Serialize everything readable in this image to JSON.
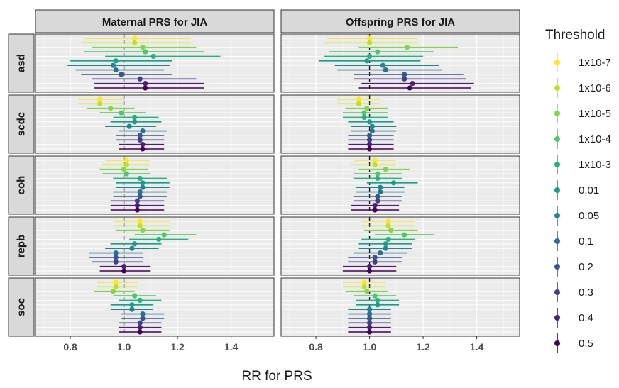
{
  "chart_data": {
    "type": "scatter",
    "subtype": "forest-plot-faceted",
    "xlabel": "RR for PRS",
    "xlim": [
      0.67,
      1.56
    ],
    "x_ticks": [
      0.8,
      1.0,
      1.2,
      1.4
    ],
    "x_tick_labels": [
      "0.8",
      "1.0",
      "1.2",
      "1.4"
    ],
    "reference_line": 1.0,
    "grid": true,
    "legend_position": "right",
    "legend_title": "Threshold",
    "thresholds": [
      "1x10-7",
      "1x10-6",
      "1x10-5",
      "1x10-4",
      "1x10-3",
      "0.01",
      "0.05",
      "0.1",
      "0.2",
      "0.3",
      "0.4",
      "0.5"
    ],
    "threshold_colors": [
      "#fde725",
      "#c2df23",
      "#86d549",
      "#52c569",
      "#2ab07f",
      "#1e9b8a",
      "#25858e",
      "#2d708e",
      "#38588c",
      "#433e85",
      "#482173",
      "#440154"
    ],
    "columns": [
      "Maternal PRS for JIA",
      "Offspring PRS for JIA"
    ],
    "rows": [
      "asd",
      "scdc",
      "coh",
      "repb",
      "soc"
    ],
    "panels": [
      {
        "column": "Maternal PRS for JIA",
        "row": "asd",
        "estimates": [
          1.04,
          1.04,
          1.07,
          1.08,
          1.11,
          0.97,
          0.96,
          0.97,
          0.99,
          1.06,
          1.08,
          1.08
        ],
        "lower": [
          0.85,
          0.84,
          0.88,
          0.85,
          0.93,
          0.8,
          0.79,
          0.82,
          0.84,
          0.88,
          0.89,
          0.89
        ],
        "upper": [
          1.25,
          1.25,
          1.27,
          1.3,
          1.36,
          1.18,
          1.17,
          1.15,
          1.18,
          1.27,
          1.3,
          1.3
        ]
      },
      {
        "column": "Maternal PRS for JIA",
        "row": "scdc",
        "estimates": [
          0.91,
          0.91,
          0.95,
          0.99,
          1.04,
          1.04,
          1.02,
          1.07,
          1.06,
          1.06,
          1.07,
          1.07
        ],
        "lower": [
          0.83,
          0.83,
          0.86,
          0.91,
          0.96,
          0.95,
          0.93,
          0.98,
          0.97,
          0.97,
          0.98,
          0.98
        ],
        "upper": [
          1.0,
          1.0,
          1.04,
          1.08,
          1.13,
          1.14,
          1.12,
          1.16,
          1.15,
          1.15,
          1.15,
          1.15
        ]
      },
      {
        "column": "Maternal PRS for JIA",
        "row": "coh",
        "estimates": [
          1.01,
          1.01,
          1.0,
          1.01,
          1.06,
          1.07,
          1.07,
          1.06,
          1.06,
          1.05,
          1.05,
          1.05
        ],
        "lower": [
          0.93,
          0.92,
          0.91,
          0.92,
          0.96,
          0.97,
          0.97,
          0.96,
          0.96,
          0.95,
          0.95,
          0.95
        ],
        "upper": [
          1.1,
          1.1,
          1.09,
          1.1,
          1.16,
          1.17,
          1.17,
          1.16,
          1.16,
          1.15,
          1.15,
          1.15
        ]
      },
      {
        "column": "Maternal PRS for JIA",
        "row": "repb",
        "estimates": [
          1.06,
          1.06,
          1.07,
          1.15,
          1.13,
          1.04,
          1.03,
          0.97,
          0.97,
          0.97,
          1.0,
          1.0
        ],
        "lower": [
          0.96,
          0.96,
          0.97,
          1.04,
          1.02,
          0.95,
          0.93,
          0.87,
          0.87,
          0.88,
          0.91,
          0.91
        ],
        "upper": [
          1.17,
          1.17,
          1.17,
          1.27,
          1.24,
          1.14,
          1.13,
          1.07,
          1.07,
          1.07,
          1.1,
          1.1
        ]
      },
      {
        "column": "Maternal PRS for JIA",
        "row": "soc",
        "estimates": [
          0.97,
          0.97,
          0.96,
          1.04,
          1.06,
          1.03,
          1.03,
          1.07,
          1.07,
          1.06,
          1.06,
          1.06
        ],
        "lower": [
          0.9,
          0.9,
          0.89,
          0.96,
          0.98,
          0.95,
          0.95,
          0.99,
          0.99,
          0.98,
          0.98,
          0.98
        ],
        "upper": [
          1.05,
          1.05,
          1.04,
          1.12,
          1.14,
          1.11,
          1.11,
          1.15,
          1.15,
          1.14,
          1.14,
          1.14
        ]
      },
      {
        "column": "Offspring PRS for JIA",
        "row": "asd",
        "estimates": [
          1.0,
          1.0,
          1.14,
          1.03,
          1.0,
          0.99,
          1.05,
          1.06,
          1.13,
          1.13,
          1.16,
          1.15
        ],
        "lower": [
          0.84,
          0.83,
          0.96,
          0.85,
          0.83,
          0.81,
          0.87,
          0.88,
          0.94,
          0.94,
          0.97,
          0.96
        ],
        "upper": [
          1.18,
          1.18,
          1.33,
          1.24,
          1.2,
          1.19,
          1.26,
          1.27,
          1.35,
          1.36,
          1.39,
          1.38
        ]
      },
      {
        "column": "Offspring PRS for JIA",
        "row": "scdc",
        "estimates": [
          0.96,
          0.96,
          0.99,
          0.98,
          0.98,
          1.0,
          1.01,
          1.01,
          1.0,
          1.0,
          1.0,
          1.0
        ],
        "lower": [
          0.88,
          0.88,
          0.91,
          0.9,
          0.9,
          0.92,
          0.93,
          0.93,
          0.92,
          0.92,
          0.92,
          0.92
        ],
        "upper": [
          1.04,
          1.04,
          1.07,
          1.07,
          1.07,
          1.09,
          1.1,
          1.1,
          1.09,
          1.09,
          1.09,
          1.09
        ]
      },
      {
        "column": "Offspring PRS for JIA",
        "row": "coh",
        "estimates": [
          1.02,
          1.02,
          1.06,
          1.03,
          1.03,
          1.09,
          1.04,
          1.04,
          1.03,
          1.03,
          1.02,
          1.02
        ],
        "lower": [
          0.94,
          0.93,
          0.96,
          0.94,
          0.94,
          0.99,
          0.95,
          0.95,
          0.94,
          0.94,
          0.93,
          0.93
        ],
        "upper": [
          1.1,
          1.1,
          1.15,
          1.12,
          1.12,
          1.18,
          1.13,
          1.13,
          1.12,
          1.12,
          1.11,
          1.11
        ]
      },
      {
        "column": "Offspring PRS for JIA",
        "row": "repb",
        "estimates": [
          1.07,
          1.07,
          1.08,
          1.13,
          1.07,
          1.06,
          1.06,
          1.04,
          1.02,
          1.02,
          1.0,
          1.0
        ],
        "lower": [
          0.97,
          0.97,
          0.98,
          1.02,
          0.97,
          0.96,
          0.96,
          0.94,
          0.92,
          0.92,
          0.9,
          0.9
        ],
        "upper": [
          1.17,
          1.17,
          1.18,
          1.24,
          1.17,
          1.16,
          1.16,
          1.14,
          1.12,
          1.12,
          1.1,
          1.1
        ]
      },
      {
        "column": "Offspring PRS for JIA",
        "row": "soc",
        "estimates": [
          0.98,
          0.98,
          0.99,
          1.02,
          1.03,
          1.03,
          1.0,
          1.0,
          1.0,
          1.0,
          1.0,
          1.0
        ],
        "lower": [
          0.9,
          0.9,
          0.91,
          0.94,
          0.95,
          0.95,
          0.92,
          0.92,
          0.92,
          0.92,
          0.92,
          0.92
        ],
        "upper": [
          1.06,
          1.06,
          1.07,
          1.1,
          1.11,
          1.11,
          1.08,
          1.08,
          1.08,
          1.08,
          1.08,
          1.08
        ]
      }
    ]
  }
}
